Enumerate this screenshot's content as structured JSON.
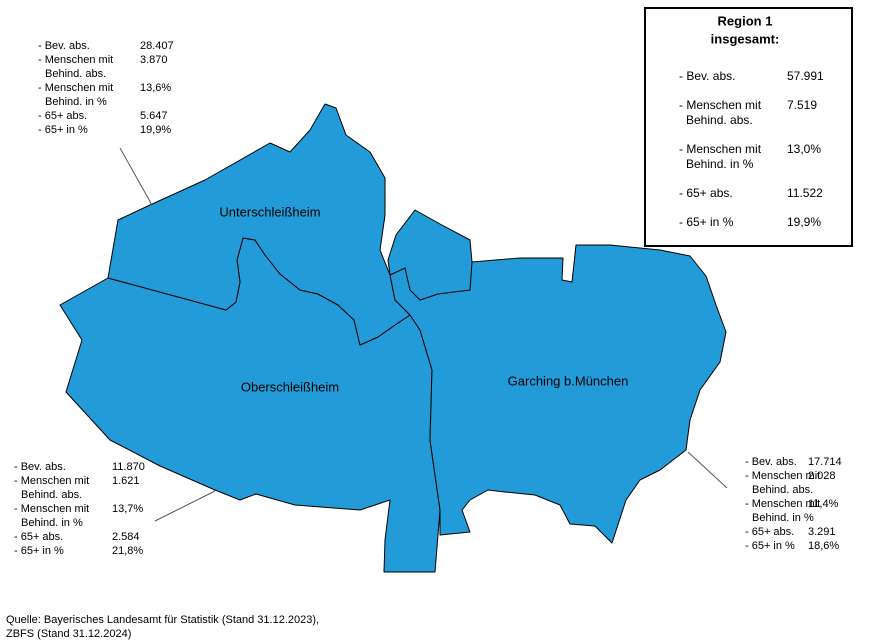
{
  "summary": {
    "title": "Region 1",
    "subtitle": "insgesamt:",
    "rows": [
      {
        "label": [
          "- Bev. abs."
        ],
        "value": "57.991"
      },
      {
        "label": [
          "- Menschen mit",
          "Behind. abs."
        ],
        "value": "7.519"
      },
      {
        "label": [
          "- Menschen mit",
          "Behind. in %"
        ],
        "value": "13,0%"
      },
      {
        "label": [
          "- 65+ abs."
        ],
        "value": "11.522"
      },
      {
        "label": [
          "- 65+ in %"
        ],
        "value": "19,9%"
      }
    ]
  },
  "regions": [
    {
      "name": "Unterschleißheim",
      "rows": [
        {
          "label": [
            "- Bev. abs."
          ],
          "value": "28.407"
        },
        {
          "label": [
            "- Menschen mit",
            "Behind. abs."
          ],
          "value": "3.870"
        },
        {
          "label": [
            "- Menschen mit",
            "Behind. in %"
          ],
          "value": "13,6%"
        },
        {
          "label": [
            "- 65+ abs."
          ],
          "value": "5.647"
        },
        {
          "label": [
            "- 65+ in %"
          ],
          "value": "19,9%"
        }
      ]
    },
    {
      "name": "Oberschleißheim",
      "rows": [
        {
          "label": [
            "- Bev. abs."
          ],
          "value": "11.870"
        },
        {
          "label": [
            "- Menschen mit",
            "Behind. abs."
          ],
          "value": "1.621"
        },
        {
          "label": [
            "- Menschen mit",
            "Behind. in %"
          ],
          "value": "13,7%"
        },
        {
          "label": [
            "- 65+ abs."
          ],
          "value": "2.584"
        },
        {
          "label": [
            "- 65+ in %"
          ],
          "value": "21,8%"
        }
      ]
    },
    {
      "name": "Garching b.München",
      "rows": [
        {
          "label": [
            "- Bev. abs."
          ],
          "value": "17.714"
        },
        {
          "label": [
            "- Menschen mit",
            "Behind. abs."
          ],
          "value": "2.028"
        },
        {
          "label": [
            "- Menschen mit",
            "Behind. in %"
          ],
          "value": "11,4%"
        },
        {
          "label": [
            "- 65+ abs."
          ],
          "value": "3.291"
        },
        {
          "label": [
            "- 65+ in %"
          ],
          "value": "18,6%"
        }
      ]
    }
  ],
  "source": [
    "Quelle: Bayerisches Landesamt für Statistik (Stand 31.12.2023),",
    "ZBFS (Stand 31.12.2024)"
  ]
}
